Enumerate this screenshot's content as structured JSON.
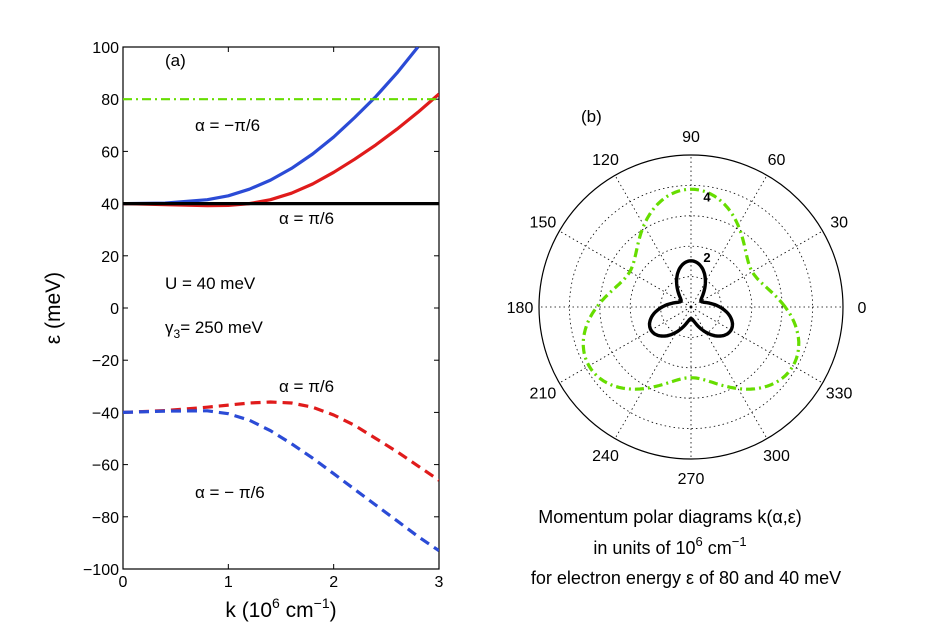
{
  "chart_data": [
    {
      "type": "line",
      "panel": "(a)",
      "xlabel": "k (10",
      "xlabel_sup": "6",
      "xlabel_unit": " cm",
      "xlabel_unit_sup": "−1",
      "xlabel_close": ")",
      "ylabel": "ε  (meV)",
      "xlim": [
        0,
        3
      ],
      "ylim": [
        -100,
        100
      ],
      "xticks": [
        0,
        1,
        2,
        3
      ],
      "xtick_labels": [
        "0",
        "1",
        "2",
        "3"
      ],
      "yticks": [
        -100,
        -80,
        -60,
        -40,
        -20,
        0,
        20,
        40,
        60,
        80,
        100
      ],
      "ytick_labels": [
        "−100",
        "−80",
        "−60",
        "−40",
        "−20",
        "0",
        "20",
        "40",
        "60",
        "80",
        "100"
      ],
      "series": [
        {
          "name": "alpha=-pi/6 upper",
          "color": "#2b4bd6",
          "style": "solid",
          "x": [
            0,
            0.4,
            0.8,
            1.0,
            1.2,
            1.4,
            1.6,
            1.8,
            2.0,
            2.2,
            2.4,
            2.6,
            2.8
          ],
          "y": [
            40,
            40.2,
            41.5,
            43,
            45.5,
            49,
            53.5,
            59,
            65.5,
            73,
            81,
            90,
            100
          ]
        },
        {
          "name": "alpha=pi/6 upper",
          "color": "#e01b1b",
          "style": "solid",
          "x": [
            0,
            0.4,
            0.8,
            1.0,
            1.2,
            1.4,
            1.6,
            1.8,
            2.0,
            2.2,
            2.4,
            2.6,
            2.8,
            3.0
          ],
          "y": [
            40,
            39.6,
            39.2,
            39.3,
            40,
            41.5,
            44,
            47.5,
            52,
            57,
            62.5,
            68.5,
            75,
            82
          ]
        },
        {
          "name": "U level",
          "color": "#000000",
          "style": "solid",
          "x": [
            0,
            3
          ],
          "y": [
            40,
            40
          ]
        },
        {
          "name": "80 meV",
          "color": "#66dd00",
          "style": "dashdot",
          "x": [
            0,
            3
          ],
          "y": [
            80,
            80
          ]
        },
        {
          "name": "alpha=pi/6 lower",
          "color": "#e01b1b",
          "style": "dashed",
          "x": [
            0,
            0.4,
            0.8,
            1.0,
            1.2,
            1.4,
            1.6,
            1.8,
            2.0,
            2.2,
            2.4,
            2.6,
            2.8,
            3.0
          ],
          "y": [
            -40,
            -39.3,
            -38,
            -37.2,
            -36.4,
            -36,
            -36.4,
            -38,
            -41,
            -45,
            -50,
            -55,
            -60.5,
            -66
          ]
        },
        {
          "name": "alpha=-pi/6 lower",
          "color": "#2b4bd6",
          "style": "dashed",
          "x": [
            0,
            0.4,
            0.8,
            1.0,
            1.2,
            1.4,
            1.6,
            1.8,
            2.0,
            2.2,
            2.4,
            2.6,
            2.8,
            3.0
          ],
          "y": [
            -40,
            -39.5,
            -39.4,
            -40.5,
            -43,
            -47,
            -52,
            -57.5,
            -63.5,
            -69.5,
            -75.5,
            -81.5,
            -87.5,
            -93
          ]
        }
      ],
      "annotations": {
        "alpha_neg_upper": "α = −π/6",
        "alpha_pos_upper": "α =  π/6",
        "u_text": "U = 40 meV",
        "gamma_sym": "γ",
        "gamma_sub": "3",
        "gamma_text": "= 250 meV",
        "alpha_pos_lower": "α = π/6",
        "alpha_neg_lower": "α = − π/6"
      }
    },
    {
      "type": "polar",
      "panel": "(b)",
      "rmax": 5,
      "rticks": [
        2,
        4
      ],
      "rtick_labels": [
        "2",
        "4"
      ],
      "angle_labels": [
        "0",
        "30",
        "60",
        "90",
        "120",
        "150",
        "180",
        "210",
        "240",
        "270",
        "300",
        "330"
      ],
      "series": [
        {
          "name": "80 meV",
          "color": "#66dd00",
          "style": "dashdot",
          "r0": 3.1,
          "a3": 0.25
        },
        {
          "name": "40 meV",
          "color": "#000000",
          "style": "solid",
          "r0": 0.95,
          "a3": 0.6
        }
      ],
      "caption": {
        "line1": "Momentum polar diagrams k(α,ε)",
        "line2a": "in units of 10",
        "line2_sup1": "6",
        "line2b": " cm",
        "line2_sup2": "−1",
        "line3": "for electron energy ε of 80 and 40 meV"
      }
    }
  ]
}
